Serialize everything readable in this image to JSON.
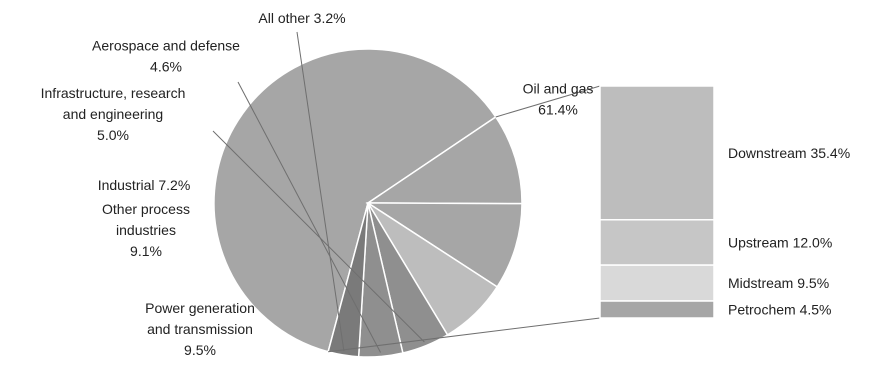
{
  "chart_data": {
    "type": "pie",
    "title": "",
    "slices": [
      {
        "label_lines": [
          "Oil and gas",
          "61.4%"
        ],
        "value": 61.4,
        "color": "#a6a6a6"
      },
      {
        "label_lines": [
          "Power generation",
          "and transmission",
          "9.5%"
        ],
        "value": 9.5,
        "color": "#a6a6a6"
      },
      {
        "label_lines": [
          "Other process",
          "industries",
          "9.1%"
        ],
        "value": 9.1,
        "color": "#a6a6a6"
      },
      {
        "label_lines": [
          "Industrial 7.2%"
        ],
        "value": 7.2,
        "color": "#bdbdbd"
      },
      {
        "label_lines": [
          "Infrastructure, research",
          "and engineering",
          "5.0%"
        ],
        "value": 5.0,
        "color": "#8f8f8f"
      },
      {
        "label_lines": [
          "Aerospace and defense",
          "4.6%"
        ],
        "value": 4.6,
        "color": "#8f8f8f"
      },
      {
        "label_lines": [
          "All other 3.2%"
        ],
        "value": 3.2,
        "color": "#7a7a7a"
      }
    ],
    "breakdown": {
      "of": "Oil and gas",
      "segments": [
        {
          "label": "Downstream 35.4%",
          "value": 35.4,
          "color": "#bdbdbd"
        },
        {
          "label": "Upstream 12.0%",
          "value": 12.0,
          "color": "#c6c6c6"
        },
        {
          "label": "Midstream 9.5%",
          "value": 9.5,
          "color": "#d9d9d9"
        },
        {
          "label": "Petrochem 4.5%",
          "value": 4.5,
          "color": "#a6a6a6"
        }
      ]
    }
  }
}
